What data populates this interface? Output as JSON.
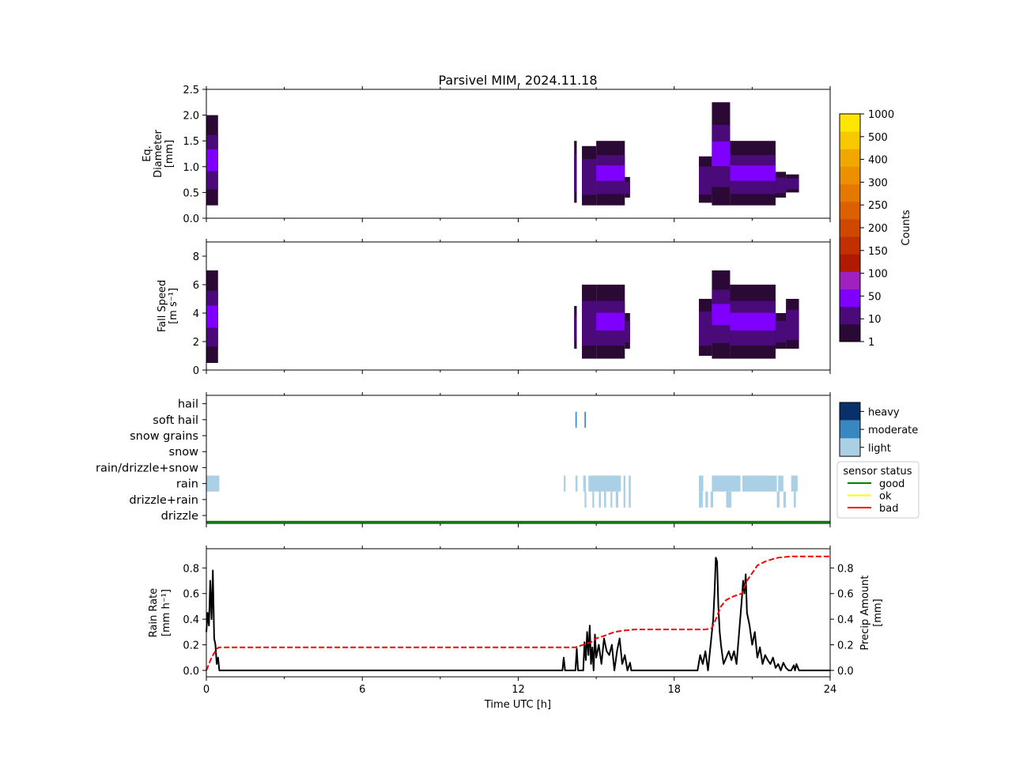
{
  "chart_data": {
    "type": "multi-panel",
    "title": "Parsivel MIM, 2024.11.18",
    "xlabel": "Time UTC [h]",
    "xlim": [
      0,
      24
    ],
    "xticks": [
      0,
      6,
      12,
      18,
      24
    ],
    "panels": [
      {
        "id": "diameter",
        "type": "heatmap",
        "ylabel": [
          "Eq.",
          "Diameter",
          "[mm]"
        ],
        "ylim": [
          0,
          2.5
        ],
        "yticks": [
          "0.0",
          "0.5",
          "1.0",
          "1.5",
          "2.0",
          "2.5"
        ],
        "ytick_values": [
          0,
          0.5,
          1.0,
          1.5,
          2.0,
          2.5
        ],
        "columns": [
          {
            "t0": 0.0,
            "t1": 0.45,
            "ymin": 0.25,
            "ymax": 2.0,
            "level": 2
          },
          {
            "t0": 14.15,
            "t1": 14.25,
            "ymin": 0.3,
            "ymax": 1.5,
            "level": 1
          },
          {
            "t0": 14.45,
            "t1": 15.0,
            "ymin": 0.25,
            "ymax": 1.4,
            "level": 1
          },
          {
            "t0": 15.0,
            "t1": 16.1,
            "ymin": 0.25,
            "ymax": 1.5,
            "level": 2
          },
          {
            "t0": 16.1,
            "t1": 16.3,
            "ymin": 0.4,
            "ymax": 0.8,
            "level": 1
          },
          {
            "t0": 18.95,
            "t1": 19.45,
            "ymin": 0.3,
            "ymax": 1.2,
            "level": 1
          },
          {
            "t0": 19.45,
            "t1": 20.15,
            "ymin": 0.25,
            "ymax": 2.25,
            "level": 2
          },
          {
            "t0": 20.15,
            "t1": 21.9,
            "ymin": 0.25,
            "ymax": 1.5,
            "level": 2
          },
          {
            "t0": 21.9,
            "t1": 22.3,
            "ymin": 0.4,
            "ymax": 0.9,
            "level": 1
          },
          {
            "t0": 22.3,
            "t1": 22.8,
            "ymin": 0.5,
            "ymax": 0.85,
            "level": 1
          }
        ]
      },
      {
        "id": "fallspeed",
        "type": "heatmap",
        "ylabel": [
          "Fall Speed",
          "[m s⁻¹]"
        ],
        "ylim": [
          0,
          9.0
        ],
        "yticks": [
          "0",
          "2",
          "4",
          "6",
          "8"
        ],
        "ytick_values": [
          0,
          2,
          4,
          6,
          8
        ],
        "columns": [
          {
            "t0": 0.0,
            "t1": 0.45,
            "ymin": 0.5,
            "ymax": 7.0,
            "level": 2
          },
          {
            "t0": 14.15,
            "t1": 14.25,
            "ymin": 1.5,
            "ymax": 4.5,
            "level": 1
          },
          {
            "t0": 14.45,
            "t1": 15.0,
            "ymin": 0.8,
            "ymax": 6.0,
            "level": 1
          },
          {
            "t0": 15.0,
            "t1": 16.1,
            "ymin": 0.8,
            "ymax": 6.0,
            "level": 2
          },
          {
            "t0": 16.1,
            "t1": 16.3,
            "ymin": 1.5,
            "ymax": 4.0,
            "level": 1
          },
          {
            "t0": 18.95,
            "t1": 19.45,
            "ymin": 1.0,
            "ymax": 5.0,
            "level": 1
          },
          {
            "t0": 19.45,
            "t1": 20.15,
            "ymin": 0.8,
            "ymax": 7.0,
            "level": 2
          },
          {
            "t0": 20.15,
            "t1": 21.9,
            "ymin": 0.8,
            "ymax": 6.0,
            "level": 2
          },
          {
            "t0": 21.9,
            "t1": 22.3,
            "ymin": 1.5,
            "ymax": 4.0,
            "level": 1
          },
          {
            "t0": 22.3,
            "t1": 22.8,
            "ymin": 1.5,
            "ymax": 5.0,
            "level": 1
          }
        ]
      },
      {
        "id": "precip_type",
        "type": "event-bars",
        "categories": [
          "drizzle",
          "drizzle+rain",
          "rain",
          "rain/drizzle+snow",
          "snow",
          "snow grains",
          "soft hail",
          "hail"
        ],
        "intensity_colors": {
          "light": "#abd0e6",
          "moderate": "#3787c0",
          "heavy": "#08306b"
        },
        "events": [
          {
            "category": "rain",
            "t0": 0.0,
            "t1": 0.5,
            "intensity": "light"
          },
          {
            "category": "rain",
            "t0": 13.75,
            "t1": 13.82,
            "intensity": "light"
          },
          {
            "category": "rain",
            "t0": 14.2,
            "t1": 14.28,
            "intensity": "light"
          },
          {
            "category": "rain",
            "t0": 14.5,
            "t1": 14.6,
            "intensity": "light"
          },
          {
            "category": "rain",
            "t0": 14.7,
            "t1": 15.95,
            "intensity": "light"
          },
          {
            "category": "rain",
            "t0": 16.05,
            "t1": 16.12,
            "intensity": "light"
          },
          {
            "category": "rain",
            "t0": 16.25,
            "t1": 16.33,
            "intensity": "light"
          },
          {
            "category": "rain",
            "t0": 18.95,
            "t1": 19.12,
            "intensity": "light"
          },
          {
            "category": "rain",
            "t0": 19.45,
            "t1": 20.55,
            "intensity": "light"
          },
          {
            "category": "rain",
            "t0": 20.62,
            "t1": 21.95,
            "intensity": "light"
          },
          {
            "category": "rain",
            "t0": 22.0,
            "t1": 22.2,
            "intensity": "light"
          },
          {
            "category": "rain",
            "t0": 22.5,
            "t1": 22.75,
            "intensity": "light"
          },
          {
            "category": "drizzle+rain",
            "t0": 14.55,
            "t1": 14.62,
            "intensity": "light"
          },
          {
            "category": "drizzle+rain",
            "t0": 14.85,
            "t1": 14.92,
            "intensity": "light"
          },
          {
            "category": "drizzle+rain",
            "t0": 15.1,
            "t1": 15.18,
            "intensity": "light"
          },
          {
            "category": "drizzle+rain",
            "t0": 15.3,
            "t1": 15.38,
            "intensity": "light"
          },
          {
            "category": "drizzle+rain",
            "t0": 15.55,
            "t1": 15.62,
            "intensity": "light"
          },
          {
            "category": "drizzle+rain",
            "t0": 15.75,
            "t1": 15.85,
            "intensity": "light"
          },
          {
            "category": "drizzle+rain",
            "t0": 16.05,
            "t1": 16.12,
            "intensity": "light"
          },
          {
            "category": "drizzle+rain",
            "t0": 16.25,
            "t1": 16.33,
            "intensity": "light"
          },
          {
            "category": "drizzle+rain",
            "t0": 18.95,
            "t1": 19.1,
            "intensity": "light"
          },
          {
            "category": "drizzle+rain",
            "t0": 19.2,
            "t1": 19.3,
            "intensity": "light"
          },
          {
            "category": "drizzle+rain",
            "t0": 19.4,
            "t1": 19.5,
            "intensity": "light"
          },
          {
            "category": "drizzle+rain",
            "t0": 20.0,
            "t1": 20.2,
            "intensity": "light"
          },
          {
            "category": "drizzle+rain",
            "t0": 21.95,
            "t1": 22.05,
            "intensity": "light"
          },
          {
            "category": "drizzle+rain",
            "t0": 22.2,
            "t1": 22.3,
            "intensity": "light"
          },
          {
            "category": "drizzle+rain",
            "t0": 22.6,
            "t1": 22.68,
            "intensity": "light"
          },
          {
            "category": "soft hail",
            "t0": 14.2,
            "t1": 14.25,
            "intensity": "moderate"
          },
          {
            "category": "soft hail",
            "t0": 14.55,
            "t1": 14.6,
            "intensity": "moderate"
          }
        ],
        "sensor_status": [
          {
            "status": "good",
            "t0": 0,
            "t1": 24
          }
        ]
      },
      {
        "id": "rain",
        "type": "line",
        "ylabel": [
          "Rain Rate",
          "[mm h⁻¹]"
        ],
        "ylim": [
          -0.05,
          0.95
        ],
        "yticks": [
          "0.0",
          "0.2",
          "0.4",
          "0.6",
          "0.8"
        ],
        "ytick_values": [
          0,
          0.2,
          0.4,
          0.6,
          0.8
        ],
        "ylabel_right": [
          "Precip Amount",
          "[mm]"
        ],
        "yticks_right": [
          "0.0",
          "0.2",
          "0.4",
          "0.6",
          "0.8"
        ],
        "series": [
          {
            "x": [
              0,
              0.05,
              0.1,
              0.15,
              0.2,
              0.25,
              0.3,
              0.35,
              0.4,
              0.45,
              0.5,
              0.55,
              13.7,
              13.75,
              13.8,
              14.2,
              14.25,
              14.3,
              14.5,
              14.55,
              14.6,
              14.65,
              14.7,
              14.75,
              14.8,
              14.85,
              14.9,
              14.95,
              15.0,
              15.1,
              15.2,
              15.3,
              15.4,
              15.5,
              15.6,
              15.7,
              15.8,
              15.9,
              16.0,
              16.1,
              16.2,
              16.3,
              16.35,
              18.9,
              19.0,
              19.1,
              19.2,
              19.3,
              19.4,
              19.5,
              19.55,
              19.6,
              19.65,
              19.7,
              19.75,
              19.8,
              19.85,
              19.9,
              20.0,
              20.1,
              20.2,
              20.3,
              20.4,
              20.5,
              20.6,
              20.65,
              20.7,
              20.75,
              20.8,
              20.9,
              21.0,
              21.1,
              21.2,
              21.3,
              21.4,
              21.5,
              21.6,
              21.7,
              21.8,
              21.9,
              22.0,
              22.1,
              22.2,
              22.3,
              22.4,
              22.5,
              22.6,
              22.65,
              22.7,
              22.8,
              24
            ],
            "values": [
              0.3,
              0.45,
              0.35,
              0.7,
              0.4,
              0.78,
              0.25,
              0.2,
              0.05,
              0.1,
              0.0,
              0.0,
              0.0,
              0.1,
              0.0,
              0.0,
              0.17,
              0.0,
              0.0,
              0.22,
              0.08,
              0.3,
              0.12,
              0.35,
              0.05,
              0.18,
              0.0,
              0.28,
              0.1,
              0.2,
              0.05,
              0.25,
              0.15,
              0.12,
              0.2,
              0.0,
              0.15,
              0.25,
              0.05,
              0.12,
              0.0,
              0.06,
              0.0,
              0.0,
              0.12,
              0.05,
              0.15,
              0.0,
              0.2,
              0.4,
              0.6,
              0.88,
              0.85,
              0.5,
              0.3,
              0.2,
              0.12,
              0.05,
              0.1,
              0.15,
              0.08,
              0.15,
              0.05,
              0.3,
              0.55,
              0.7,
              0.6,
              0.75,
              0.45,
              0.35,
              0.2,
              0.3,
              0.1,
              0.18,
              0.05,
              0.12,
              0.08,
              0.05,
              0.1,
              0.02,
              0.05,
              0.0,
              0.06,
              0.02,
              0.0,
              0.0,
              0.04,
              0.0,
              0.05,
              0.0,
              0.0
            ],
            "color": "#000000",
            "style": "solid"
          },
          {
            "x": [
              0,
              0.2,
              0.4,
              0.5,
              14.2,
              14.5,
              14.8,
              15.0,
              15.3,
              15.7,
              16.0,
              16.5,
              18.0,
              19.2,
              19.45,
              19.6,
              19.8,
              20.0,
              20.3,
              20.6,
              20.8,
              21.0,
              21.2,
              21.5,
              21.8,
              22.0,
              22.5,
              24
            ],
            "values": [
              0.0,
              0.1,
              0.17,
              0.18,
              0.18,
              0.2,
              0.22,
              0.25,
              0.27,
              0.3,
              0.31,
              0.32,
              0.32,
              0.32,
              0.33,
              0.4,
              0.5,
              0.55,
              0.58,
              0.6,
              0.7,
              0.76,
              0.82,
              0.85,
              0.87,
              0.88,
              0.89,
              0.89
            ],
            "color": "#ff0000",
            "style": "dashed",
            "axis": "right"
          }
        ]
      }
    ],
    "colorbar": {
      "label": "Counts",
      "ticks": [
        "1",
        "10",
        "50",
        "100",
        "150",
        "200",
        "250",
        "300",
        "400",
        "500",
        "1000"
      ],
      "colors": [
        "#2a0a35",
        "#4a0a7a",
        "#8000ff",
        "#a020c0",
        "#b01a00",
        "#c03000",
        "#d04800",
        "#dc6000",
        "#e57800",
        "#ec9000",
        "#f0a800",
        "#f8c800",
        "#ffe600"
      ]
    },
    "intensity_legend": {
      "items": [
        {
          "label": "heavy",
          "color": "#08306b"
        },
        {
          "label": "moderate",
          "color": "#3787c0"
        },
        {
          "label": "light",
          "color": "#abd0e6"
        }
      ]
    },
    "status_legend": {
      "title": "sensor status",
      "items": [
        {
          "label": "good",
          "color": "#008000"
        },
        {
          "label": "ok",
          "color": "#ffff00"
        },
        {
          "label": "bad",
          "color": "#ff0000"
        }
      ]
    }
  }
}
